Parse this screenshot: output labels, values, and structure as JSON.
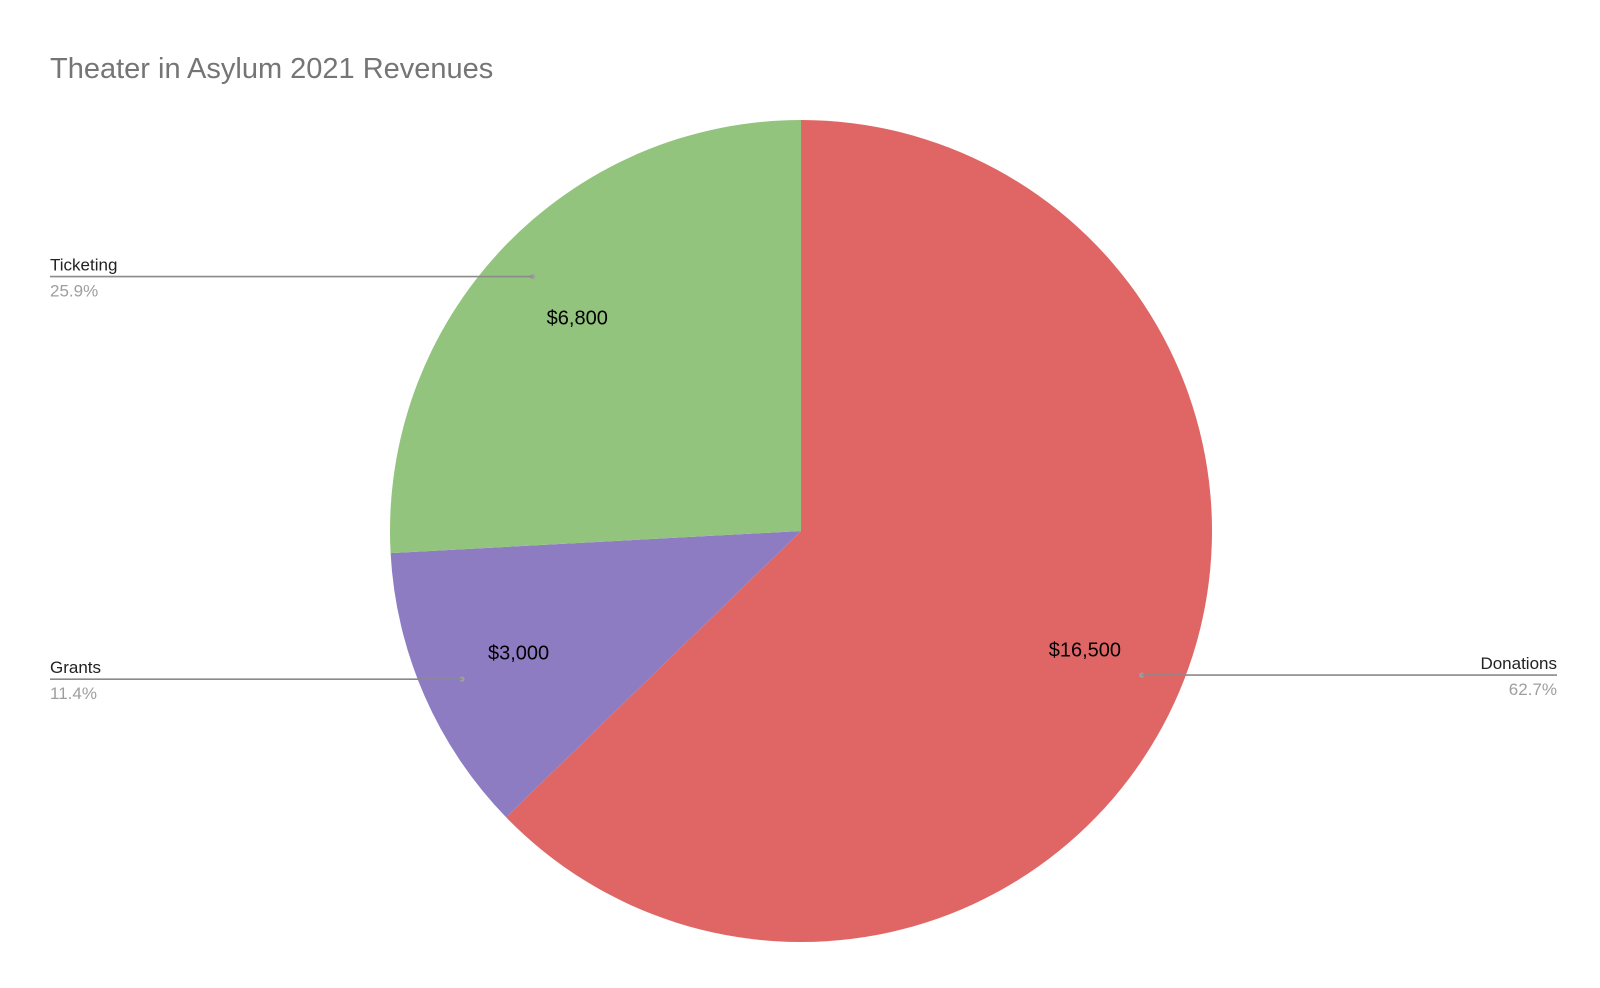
{
  "chart_data": {
    "type": "pie",
    "title": "Theater in Asylum 2021 Revenues",
    "start_angle_deg": 0,
    "direction": "clockwise",
    "slices": [
      {
        "name": "Donations",
        "value": 16500,
        "value_label": "$16,500",
        "percent_label": "62.7%",
        "color": "#e06666",
        "callout_side": "right"
      },
      {
        "name": "Grants",
        "value": 3000,
        "value_label": "$3,000",
        "percent_label": "11.4%",
        "color": "#8e7cc3",
        "callout_side": "left"
      },
      {
        "name": "Ticketing",
        "value": 6800,
        "value_label": "$6,800",
        "percent_label": "25.9%",
        "color": "#93c47d",
        "callout_side": "left"
      }
    ]
  }
}
